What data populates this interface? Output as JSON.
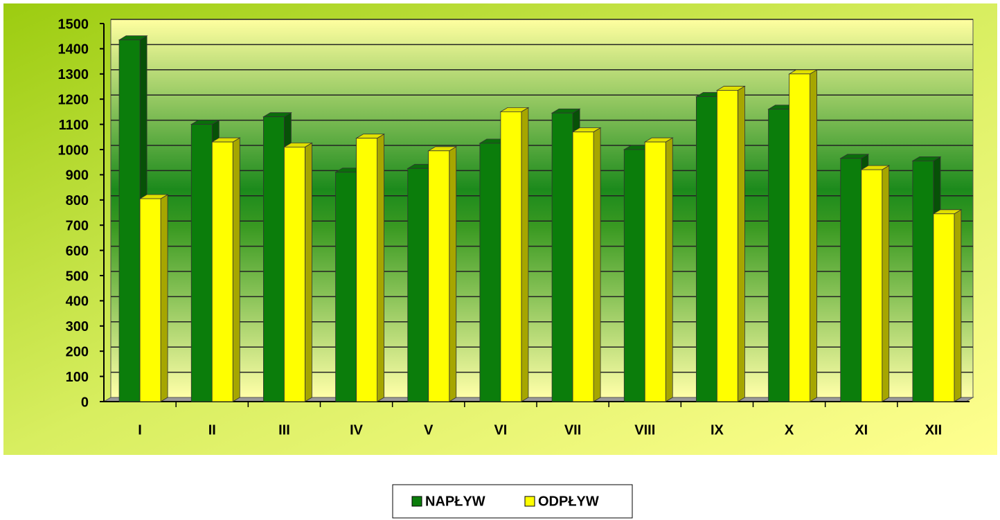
{
  "chart_data": {
    "type": "bar3d",
    "categories": [
      "I",
      "II",
      "III",
      "IV",
      "V",
      "VI",
      "VII",
      "VIII",
      "IX",
      "X",
      "XI",
      "XII"
    ],
    "series": [
      {
        "name": "NAPŁYW",
        "color": "#0b7d0b",
        "values": [
          1435,
          1100,
          1130,
          910,
          925,
          1025,
          1145,
          1000,
          1210,
          1160,
          965,
          955
        ]
      },
      {
        "name": "ODPŁYW",
        "color": "#ffff00",
        "values": [
          805,
          1030,
          1010,
          1045,
          995,
          1150,
          1070,
          1030,
          1235,
          1300,
          920,
          745
        ]
      }
    ],
    "ylim": [
      0,
      1500
    ],
    "yticks": [
      0,
      100,
      200,
      300,
      400,
      500,
      600,
      700,
      800,
      900,
      1000,
      1100,
      1200,
      1300,
      1400,
      1500
    ],
    "grid": true,
    "legend": "bottom"
  }
}
